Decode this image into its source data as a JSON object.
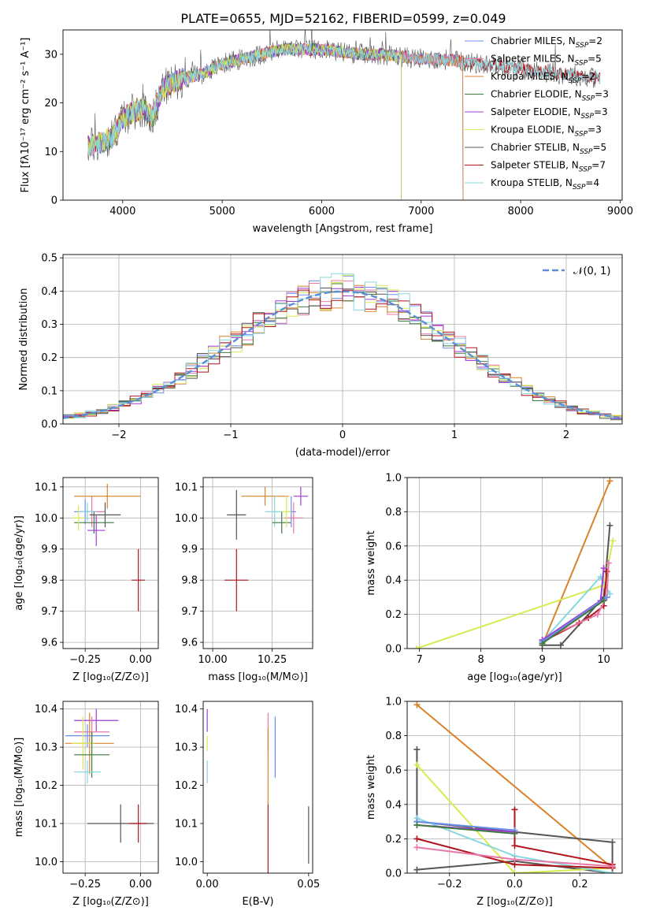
{
  "figure_title": "PLATE=0655, MJD=52162, FIBERID=0599, z=0.049",
  "colors": {
    "chabrier_miles": "#6c8ff0",
    "salpeter_miles": "#e879a9",
    "kroupa_miles": "#d8822a",
    "chabrier_elodie": "#3f7a3f",
    "salpeter_elodie": "#a23bd6",
    "kroupa_elodie": "#d8ea52",
    "chabrier_stelib": "#555555",
    "salpeter_stelib": "#b0141a",
    "kroupa_stelib": "#86d7e0",
    "normal_curve": "#5a8fd6",
    "grid": "#b0b0b0"
  },
  "chart_data": [
    {
      "id": "spectrum",
      "type": "line",
      "title": "PLATE=0655, MJD=52162, FIBERID=0599, z=0.049",
      "xlabel": "wavelength [Angstrom, rest frame]",
      "ylabel": "Flux [fλ10⁻¹⁷ erg cm⁻² s⁻¹ A⁻¹]",
      "xlim": [
        3400,
        9020
      ],
      "ylim": [
        0,
        35
      ],
      "xticks": [
        4000,
        5000,
        6000,
        7000,
        8000,
        9000
      ],
      "yticks": [
        0,
        10,
        20,
        30
      ],
      "grid": false,
      "legend_position": "right",
      "legend": [
        {
          "label": "Chabrier MILES, N",
          "sub": "SSP",
          "suffix": "=2",
          "color_key": "chabrier_miles"
        },
        {
          "label": "Salpeter MILES, N",
          "sub": "SSP",
          "suffix": "=5",
          "color_key": "salpeter_miles"
        },
        {
          "label": "Kroupa MILES, N",
          "sub": "SSP",
          "suffix": "=2",
          "color_key": "kroupa_miles"
        },
        {
          "label": "Chabrier ELODIE, N",
          "sub": "SSP",
          "suffix": "=3",
          "color_key": "chabrier_elodie"
        },
        {
          "label": "Salpeter ELODIE, N",
          "sub": "SSP",
          "suffix": "=3",
          "color_key": "salpeter_elodie"
        },
        {
          "label": "Kroupa ELODIE, N",
          "sub": "SSP",
          "suffix": "=3",
          "color_key": "kroupa_elodie"
        },
        {
          "label": "Chabrier STELIB, N",
          "sub": "SSP",
          "suffix": "=5",
          "color_key": "chabrier_stelib"
        },
        {
          "label": "Salpeter STELIB, N",
          "sub": "SSP",
          "suffix": "=7",
          "color_key": "salpeter_stelib"
        },
        {
          "label": "Kroupa STELIB, N",
          "sub": "SSP",
          "suffix": "=4",
          "color_key": "kroupa_stelib"
        }
      ],
      "flux_trend": {
        "x": [
          3650,
          3800,
          3900,
          4000,
          4100,
          4200,
          4300,
          4400,
          4500,
          4600,
          4800,
          5000,
          5200,
          5400,
          5600,
          5800,
          6000,
          6200,
          6400,
          6600,
          6800,
          7000,
          7200,
          7400,
          7600,
          7800,
          8000,
          8200,
          8400,
          8600,
          8800
        ],
        "y": [
          11,
          12,
          13,
          17,
          18,
          19,
          17,
          23,
          24,
          25,
          26,
          28,
          29,
          30,
          31,
          31,
          31,
          30.5,
          30,
          30,
          29.5,
          29,
          29,
          28.5,
          28,
          27.5,
          27,
          26.5,
          26,
          25.5,
          25
        ]
      },
      "model_coverage_max_x": {
        "chabrier_miles": 7420,
        "salpeter_miles": 7420,
        "kroupa_miles": 7420,
        "chabrier_elodie": 6800,
        "salpeter_elodie": 6800,
        "kroupa_elodie": 6800,
        "chabrier_stelib": 8800,
        "salpeter_stelib": 8800,
        "kroupa_stelib": 8800
      }
    },
    {
      "id": "residuals",
      "type": "step",
      "xlabel": "(data-model)/error",
      "ylabel": "Normed distribution",
      "xlim": [
        -2.5,
        2.5
      ],
      "ylim": [
        0,
        0.51
      ],
      "xticks": [
        -2,
        -1,
        0,
        1,
        2
      ],
      "yticks": [
        0.0,
        0.1,
        0.2,
        0.3,
        0.4,
        0.5
      ],
      "grid": true,
      "legend_position": "top-right",
      "legend": [
        {
          "label": "𝒩(0, 1)",
          "color_key": "normal_curve",
          "dashed": true
        }
      ],
      "bin_width": 0.1,
      "bin_start": -2.5,
      "normal_curve": {
        "mean": 0,
        "sigma": 1
      }
    },
    {
      "id": "age_vs_Z",
      "type": "errorbar",
      "xlabel": "Z [log₁₀(Z/Z⊙)]",
      "ylabel": "age  [log₁₀(age/yr)]",
      "xlim": [
        -0.35,
        0.08
      ],
      "ylim": [
        9.58,
        10.13
      ],
      "xticks": [
        -0.25,
        0.0
      ],
      "xticklabels": [
        "−0.25",
        "0.00"
      ],
      "yticks": [
        9.6,
        9.7,
        9.8,
        9.9,
        10.0,
        10.1
      ],
      "grid": true,
      "points": [
        {
          "color_key": "kroupa_miles",
          "x": -0.15,
          "xerr": 0.15,
          "y": 10.07,
          "yerr": 0.04
        },
        {
          "color_key": "salpeter_miles",
          "x": -0.22,
          "xerr": 0.06,
          "y": 10.02,
          "yerr": 0.05
        },
        {
          "color_key": "chabrier_miles",
          "x": -0.25,
          "xerr": 0.05,
          "y": 10.02,
          "yerr": 0.04
        },
        {
          "color_key": "kroupa_stelib",
          "x": -0.24,
          "xerr": 0.04,
          "y": 10.02,
          "yerr": 0.03
        },
        {
          "color_key": "chabrier_elodie",
          "x": -0.21,
          "xerr": 0.09,
          "y": 9.985,
          "yerr": 0.035
        },
        {
          "color_key": "chabrier_stelib",
          "x": -0.16,
          "xerr": 0.07,
          "y": 10.01,
          "yerr": 0.04
        },
        {
          "color_key": "salpeter_elodie",
          "x": -0.2,
          "xerr": 0.04,
          "y": 9.96,
          "yerr": 0.05
        },
        {
          "color_key": "salpeter_stelib",
          "x": -0.01,
          "xerr": 0.03,
          "y": 9.8,
          "yerr": 0.1
        },
        {
          "color_key": "kroupa_elodie",
          "x": -0.28,
          "xerr": 0.03,
          "y": 10.0,
          "yerr": 0.04
        }
      ]
    },
    {
      "id": "age_vs_mass",
      "type": "errorbar",
      "xlabel": "mass [log₁₀(M/M⊙)]",
      "ylabel": "",
      "xlim": [
        9.96,
        10.42
      ],
      "ylim": [
        9.58,
        10.13
      ],
      "xticks": [
        10.0,
        10.25
      ],
      "xticklabels": [
        "10.00",
        "10.25"
      ],
      "yticks": [
        9.6,
        9.7,
        9.8,
        9.9,
        10.0,
        10.1
      ],
      "grid": true,
      "points": [
        {
          "color_key": "salpeter_elodie",
          "x": 10.37,
          "xerr": 0.03,
          "y": 10.07,
          "yerr": 0.03
        },
        {
          "color_key": "kroupa_miles",
          "x": 10.22,
          "xerr": 0.1,
          "y": 10.07,
          "yerr": 0.03
        },
        {
          "color_key": "chabrier_stelib",
          "x": 10.1,
          "xerr": 0.04,
          "y": 10.01,
          "yerr": 0.08
        },
        {
          "color_key": "kroupa_stelib",
          "x": 10.26,
          "xerr": 0.04,
          "y": 10.02,
          "yerr": 0.05
        },
        {
          "color_key": "chabrier_elodie",
          "x": 10.29,
          "xerr": 0.04,
          "y": 9.985,
          "yerr": 0.035
        },
        {
          "color_key": "salpeter_miles",
          "x": 10.34,
          "xerr": 0.04,
          "y": 10.0,
          "yerr": 0.05
        },
        {
          "color_key": "chabrier_miles",
          "x": 10.33,
          "xerr": 0.02,
          "y": 10.02,
          "yerr": 0.05
        },
        {
          "color_key": "kroupa_elodie",
          "x": 10.31,
          "xerr": 0.02,
          "y": 10.02,
          "yerr": 0.05
        },
        {
          "color_key": "salpeter_stelib",
          "x": 10.1,
          "xerr": 0.05,
          "y": 9.8,
          "yerr": 0.1
        }
      ]
    },
    {
      "id": "massweight_vs_age",
      "type": "line",
      "xlabel": "age  [log₁₀(age/yr)]",
      "ylabel": "mass weight",
      "xlim": [
        6.8,
        10.3
      ],
      "ylim": [
        0,
        1.0
      ],
      "xticks": [
        7,
        8,
        9,
        10
      ],
      "yticks": [
        0.0,
        0.2,
        0.4,
        0.6,
        0.8,
        1.0
      ],
      "grid": true,
      "series": [
        {
          "color_key": "kroupa_miles",
          "x": [
            9.0,
            10.1
          ],
          "y": [
            0.02,
            0.98
          ]
        },
        {
          "color_key": "chabrier_stelib",
          "x": [
            9.0,
            9.3,
            10.0,
            10.1
          ],
          "y": [
            0.02,
            0.02,
            0.3,
            0.72
          ]
        },
        {
          "color_key": "kroupa_elodie",
          "x": [
            6.95,
            10.0,
            10.15
          ],
          "y": [
            0.0,
            0.37,
            0.63
          ]
        },
        {
          "color_key": "kroupa_stelib",
          "x": [
            9.0,
            9.95,
            10.1
          ],
          "y": [
            0.04,
            0.42,
            0.32
          ]
        },
        {
          "color_key": "salpeter_stelib",
          "x": [
            9.0,
            9.6,
            9.75,
            10.0,
            10.05
          ],
          "y": [
            0.04,
            0.15,
            0.18,
            0.25,
            0.45
          ]
        },
        {
          "color_key": "salpeter_miles",
          "x": [
            9.0,
            9.9,
            10.05,
            10.08
          ],
          "y": [
            0.05,
            0.2,
            0.3,
            0.5
          ]
        },
        {
          "color_key": "salpeter_elodie",
          "x": [
            9.0,
            9.95,
            10.0
          ],
          "y": [
            0.05,
            0.28,
            0.47
          ]
        },
        {
          "color_key": "chabrier_miles",
          "x": [
            9.0,
            10.05
          ],
          "y": [
            0.04,
            0.3
          ]
        },
        {
          "color_key": "chabrier_elodie",
          "x": [
            9.0,
            10.0
          ],
          "y": [
            0.03,
            0.28
          ]
        }
      ]
    },
    {
      "id": "mass_vs_Z",
      "type": "errorbar",
      "xlabel": "Z [log₁₀(Z/Z⊙)]",
      "ylabel": "mass [log₁₀(M/M⊙)]",
      "xlim": [
        -0.35,
        0.08
      ],
      "ylim": [
        9.97,
        10.42
      ],
      "xticks": [
        -0.25,
        0.0
      ],
      "xticklabels": [
        "−0.25",
        "0.00"
      ],
      "yticks": [
        10.0,
        10.1,
        10.2,
        10.3,
        10.4
      ],
      "grid": true,
      "points": [
        {
          "color_key": "salpeter_elodie",
          "x": -0.2,
          "xerr": 0.1,
          "y": 10.37,
          "yerr": 0.03
        },
        {
          "color_key": "salpeter_miles",
          "x": -0.22,
          "xerr": 0.08,
          "y": 10.34,
          "yerr": 0.04
        },
        {
          "color_key": "chabrier_miles",
          "x": -0.24,
          "xerr": 0.1,
          "y": 10.33,
          "yerr": 0.03
        },
        {
          "color_key": "kroupa_miles",
          "x": -0.23,
          "xerr": 0.11,
          "y": 10.31,
          "yerr": 0.08
        },
        {
          "color_key": "kroupa_elodie",
          "x": -0.26,
          "xerr": 0.05,
          "y": 10.31,
          "yerr": 0.07
        },
        {
          "color_key": "chabrier_elodie",
          "x": -0.22,
          "xerr": 0.08,
          "y": 10.28,
          "yerr": 0.06
        },
        {
          "color_key": "kroupa_stelib",
          "x": -0.24,
          "xerr": 0.06,
          "y": 10.235,
          "yerr": 0.03
        },
        {
          "color_key": "chabrier_stelib",
          "x": -0.09,
          "xerr": 0.15,
          "y": 10.1,
          "yerr": 0.05
        },
        {
          "color_key": "salpeter_stelib",
          "x": -0.01,
          "xerr": 0.04,
          "y": 10.1,
          "yerr": 0.05
        }
      ]
    },
    {
      "id": "mass_vs_ebv",
      "type": "errorbar",
      "xlabel": "E(B-V)",
      "ylabel": "",
      "xlim": [
        -0.002,
        0.052
      ],
      "ylim": [
        9.97,
        10.42
      ],
      "xticks": [
        0.0,
        0.05
      ],
      "xticklabels": [
        "0.00",
        "0.05"
      ],
      "yticks": [
        10.0,
        10.1,
        10.2,
        10.3,
        10.4
      ],
      "grid": false,
      "points": [
        {
          "color_key": "salpeter_elodie",
          "x": 0.0,
          "xerr": 0.0,
          "y": 10.37,
          "yerr": 0.03
        },
        {
          "color_key": "kroupa_elodie",
          "x": 0.0,
          "xerr": 0.0,
          "y": 10.31,
          "yerr": 0.02
        },
        {
          "color_key": "kroupa_stelib",
          "x": 0.0,
          "xerr": 0.0,
          "y": 10.235,
          "yerr": 0.03
        },
        {
          "color_key": "salpeter_miles",
          "x": 0.03,
          "xerr": 0.0,
          "y": 10.34,
          "yerr": 0.05
        },
        {
          "color_key": "kroupa_miles",
          "x": 0.03,
          "xerr": 0.0,
          "y": 10.25,
          "yerr": 0.1
        },
        {
          "color_key": "chabrier_miles",
          "x": 0.0335,
          "xerr": 0.0,
          "y": 10.3,
          "yerr": 0.08
        },
        {
          "color_key": "salpeter_stelib",
          "x": 0.03,
          "xerr": 0.0,
          "y": 10.05,
          "yerr": 0.1
        },
        {
          "color_key": "chabrier_stelib",
          "x": 0.05,
          "xerr": 0.0,
          "y": 10.07,
          "yerr": 0.075
        }
      ]
    },
    {
      "id": "massweight_vs_Z",
      "type": "line",
      "xlabel": "Z [log₁₀(Z/Z⊙)]",
      "ylabel": "mass weight",
      "xlim": [
        -0.33,
        0.33
      ],
      "ylim": [
        0,
        1.0
      ],
      "xticks": [
        -0.2,
        0.0,
        0.2
      ],
      "xticklabels": [
        "−0.2",
        "0.0",
        "0.2"
      ],
      "yticks": [
        0.0,
        0.2,
        0.4,
        0.6,
        0.8,
        1.0
      ],
      "grid": true,
      "series": [
        {
          "color_key": "kroupa_miles",
          "x": [
            -0.3,
            0.3
          ],
          "y": [
            0.98,
            0.03
          ]
        },
        {
          "color_key": "chabrier_stelib",
          "x": [
            -0.3,
            -0.3,
            0.3,
            0.3,
            0.0,
            -0.3
          ],
          "y": [
            0.72,
            0.3,
            0.18,
            0.0,
            0.07,
            0.02
          ]
        },
        {
          "color_key": "kroupa_elodie",
          "x": [
            -0.3,
            0.0,
            0.3
          ],
          "y": [
            0.63,
            0.0,
            0.03
          ]
        },
        {
          "color_key": "kroupa_stelib",
          "x": [
            -0.3,
            0.0,
            0.3
          ],
          "y": [
            0.32,
            0.1,
            0.0
          ]
        },
        {
          "color_key": "salpeter_elodie",
          "x": [
            -0.3,
            0.0
          ],
          "y": [
            0.28,
            0.24
          ]
        },
        {
          "color_key": "salpeter_stelib",
          "x": [
            -0.3,
            0.0,
            0.3
          ],
          "y": [
            0.2,
            0.05,
            0.03
          ]
        },
        {
          "color_key": "salpeter_stelib",
          "x": [
            0.0,
            0.0,
            0.3
          ],
          "y": [
            0.37,
            0.16,
            0.05
          ]
        },
        {
          "color_key": "salpeter_miles",
          "x": [
            -0.3,
            0.0,
            0.3
          ],
          "y": [
            0.15,
            0.08,
            0.04
          ]
        },
        {
          "color_key": "chabrier_miles",
          "x": [
            -0.3,
            0.0
          ],
          "y": [
            0.3,
            0.25
          ]
        },
        {
          "color_key": "chabrier_elodie",
          "x": [
            -0.3,
            0.0
          ],
          "y": [
            0.28,
            0.23
          ]
        }
      ]
    }
  ]
}
